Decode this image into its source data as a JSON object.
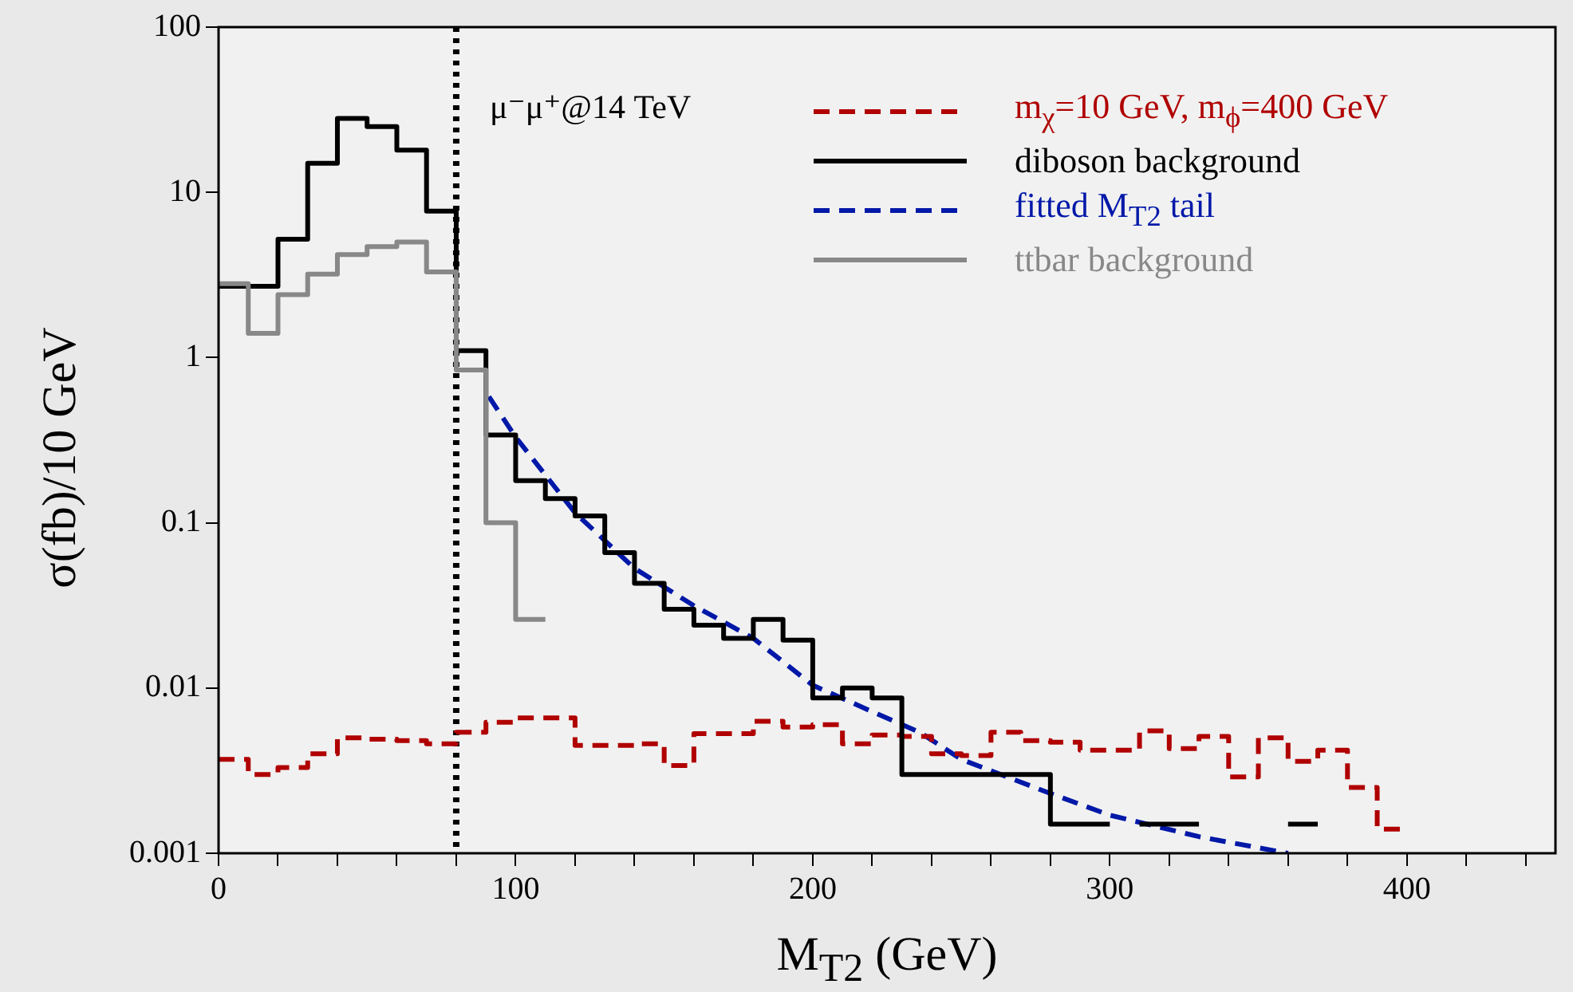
{
  "chart_data": {
    "type": "step",
    "xlabel": "M$_{T2}$  (GeV)",
    "ylabel": "σ(fb)/10 GeV",
    "annotations": [
      "μ⁻μ⁺@14 TeV"
    ],
    "log": "y",
    "grid": false,
    "legend": "top right",
    "line_style": "solid",
    "marker": "none",
    "xlim": [
      0,
      450
    ],
    "ylim": [
      0.001,
      100
    ],
    "xticks": [
      0,
      {
        "value": 20,
        "label": null
      },
      {
        "value": 40,
        "label": null
      },
      {
        "value": 60,
        "label": null
      },
      {
        "value": 80,
        "label": null
      },
      100,
      {
        "value": 120,
        "label": null
      },
      {
        "value": 140,
        "label": null
      },
      {
        "value": 160,
        "label": null
      },
      {
        "value": 180,
        "label": null
      },
      200,
      {
        "value": 220,
        "label": null
      },
      {
        "value": 240,
        "label": null
      },
      {
        "value": 260,
        "label": null
      },
      {
        "value": 280,
        "label": null
      },
      300,
      {
        "value": 320,
        "label": null
      },
      {
        "value": 340,
        "label": null
      },
      {
        "value": 360,
        "label": null
      },
      {
        "value": 380,
        "label": null
      },
      400,
      {
        "value": 420,
        "label": null
      },
      {
        "value": 440,
        "label": null
      }
    ],
    "yticks": [
      0.001,
      0.01,
      0.1,
      1,
      10,
      100
    ],
    "ref_lines": [
      {
        "axis": "x",
        "value": 80,
        "label": null,
        "color": "#000000",
        "line_style": "dotted"
      }
    ],
    "series": [
      {
        "name": "m$_{χ}$=10 GeV, m$_{ϕ}$=400 GeV",
        "color": "#b00000",
        "line_style": "dashed",
        "x": [
          0,
          10,
          20,
          30,
          40,
          50,
          60,
          70,
          80,
          90,
          100,
          110,
          120,
          130,
          140,
          150,
          160,
          170,
          180,
          190,
          200,
          210,
          220,
          230,
          240,
          250,
          260,
          270,
          280,
          290,
          300,
          310,
          320,
          330,
          340,
          350,
          360,
          370,
          380,
          390,
          400
        ],
        "values": [
          0.0037,
          0.003,
          0.0033,
          0.004,
          0.005,
          0.0049,
          0.0048,
          0.0046,
          0.0054,
          0.0062,
          0.0066,
          0.0066,
          0.0045,
          0.0045,
          0.0046,
          0.0034,
          0.0053,
          0.0053,
          0.0063,
          0.0058,
          0.006,
          0.0046,
          0.0052,
          0.0051,
          0.004,
          0.0039,
          0.0054,
          0.0048,
          0.0047,
          0.0042,
          0.0042,
          0.0055,
          0.0043,
          0.0051,
          0.0029,
          0.005,
          0.0036,
          0.0042,
          0.0025,
          0.0014,
          0.0014
        ]
      },
      {
        "name": "diboson background",
        "color": "#000000",
        "x": [
          0,
          10,
          20,
          30,
          40,
          50,
          60,
          70,
          80,
          90,
          100,
          110,
          120,
          130,
          140,
          150,
          160,
          170,
          180,
          190,
          200,
          210,
          220,
          230,
          240,
          250,
          260,
          270,
          280,
          290,
          300,
          310,
          320,
          330,
          340,
          350,
          360,
          370
        ],
        "values": [
          2.7,
          2.7,
          5.2,
          15,
          28,
          25,
          18,
          7.7,
          1.1,
          0.34,
          0.18,
          0.14,
          0.11,
          0.066,
          0.043,
          0.03,
          0.024,
          0.02,
          0.026,
          0.0195,
          0.0087,
          0.01,
          0.0087,
          0.003,
          0.003,
          0.003,
          0.003,
          0.003,
          0.0015,
          0.0015,
          null,
          0.0015,
          0.0015,
          null,
          null,
          null,
          0.0015,
          0.0015
        ]
      },
      {
        "name": "fitted M$_{T2}$ tail",
        "color": "#0018a8",
        "type": "line",
        "line_style": "dashed",
        "x": [
          91,
          100,
          120,
          140,
          160,
          180,
          200,
          220,
          236,
          250,
          280,
          300,
          330,
          360
        ],
        "values": [
          0.58,
          0.33,
          0.115,
          0.053,
          0.0315,
          0.02,
          0.0104,
          0.0072,
          0.0054,
          0.0037,
          0.0023,
          0.0017,
          0.00126,
          0.001
        ]
      },
      {
        "name": "ttbar background",
        "color": "#888888",
        "x": [
          0,
          10,
          20,
          30,
          40,
          50,
          60,
          70,
          80,
          90,
          100,
          110
        ],
        "values": [
          2.8,
          1.4,
          2.4,
          3.2,
          4.2,
          4.7,
          5.0,
          3.3,
          0.84,
          0.1,
          0.026,
          0.026
        ]
      }
    ]
  }
}
